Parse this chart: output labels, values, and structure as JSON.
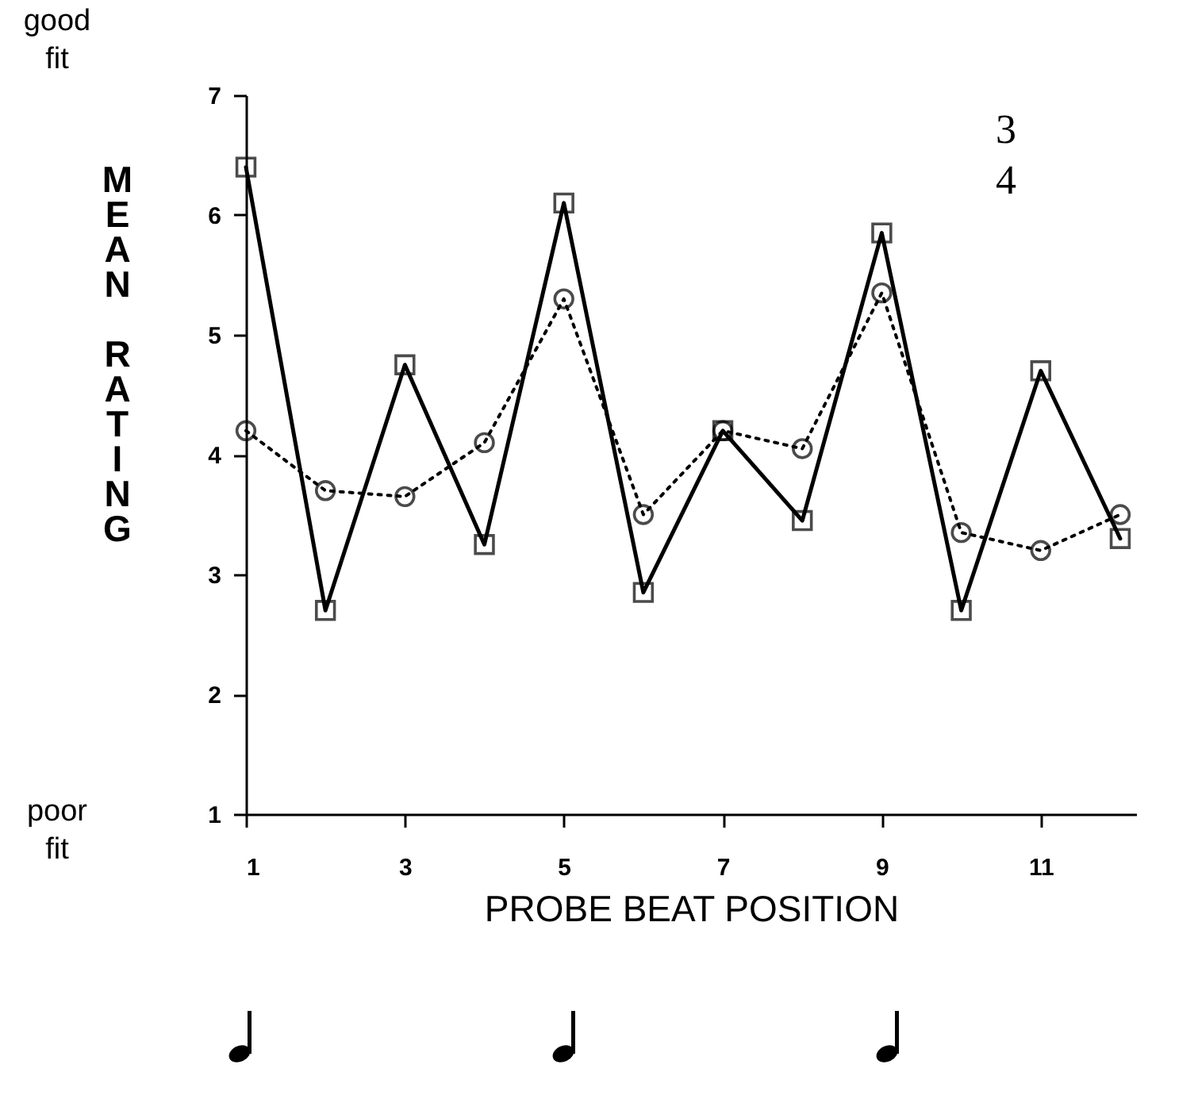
{
  "chart_data": {
    "type": "line",
    "xlabel": "PROBE BEAT POSITION",
    "ylabel": "MEAN RATING",
    "annotations": [
      "good fit",
      "poor fit",
      "3 4"
    ],
    "x": [
      1,
      2,
      3,
      4,
      5,
      6,
      7,
      8,
      9,
      10,
      11,
      12
    ],
    "xlim": [
      1,
      12.2
    ],
    "xticks": [
      1,
      3,
      5,
      7,
      9,
      11
    ],
    "ylim": [
      1,
      7
    ],
    "yticks": [
      1,
      2,
      3,
      4,
      5,
      6,
      7
    ],
    "series": [
      {
        "color": "#000000",
        "marker": "square",
        "line_style": "solid",
        "values": [
          6.4,
          2.7,
          4.75,
          3.25,
          6.1,
          2.85,
          4.2,
          3.45,
          5.85,
          2.7,
          4.7,
          3.3
        ]
      },
      {
        "color": "#000000",
        "marker": "circle",
        "line_style": "dotted",
        "values": [
          4.2,
          3.7,
          3.65,
          4.1,
          5.3,
          3.5,
          4.2,
          4.05,
          5.35,
          3.35,
          3.2,
          3.5
        ]
      }
    ]
  }
}
